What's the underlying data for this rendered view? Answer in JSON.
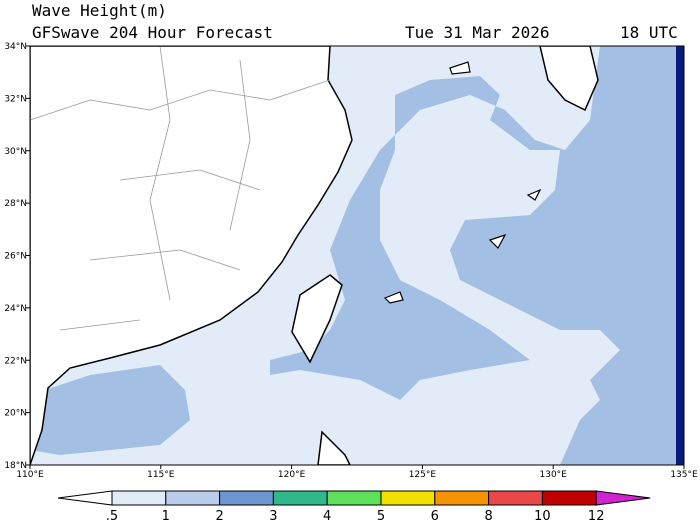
{
  "header": {
    "title": "Wave Height(m)",
    "subtitle": "GFSwave 204 Hour Forecast",
    "date": "Tue 31 Mar 2026",
    "time": "18 UTC"
  },
  "map": {
    "lat_labels": [
      "34°N",
      "32°N",
      "30°N",
      "28°N",
      "26°N",
      "24°N",
      "22°N",
      "20°N",
      "18°N"
    ],
    "lon_labels": [
      "110°E",
      "115°E",
      "120°E",
      "125°E",
      "130°E",
      "135°E"
    ]
  },
  "colorbar": {
    "labels": [
      ".5",
      "1",
      "2",
      "3",
      "4",
      "5",
      "6",
      "8",
      "10",
      "12"
    ],
    "colors": [
      "#ffffff",
      "#e2ecf8",
      "#b9cdea",
      "#6d95cf",
      "#2fb98b",
      "#5ee05a",
      "#f2e000",
      "#f59200",
      "#ea4848",
      "#c00000",
      "#d024d0"
    ]
  }
}
